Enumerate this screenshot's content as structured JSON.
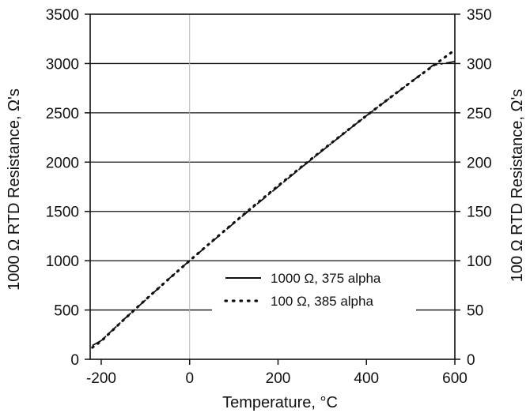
{
  "chart_data": {
    "type": "line",
    "title": "",
    "xlabel": "Temperature, °C",
    "ylabel_left": "1000  Ω  RTD Resistance,  Ω's",
    "ylabel_right": "100  Ω  RTD Resistance,  Ω's",
    "xlim": [
      -225,
      600
    ],
    "ylim_left": [
      0,
      3500
    ],
    "ylim_right": [
      0,
      350
    ],
    "x_ticks": [
      -200,
      0,
      200,
      400,
      600
    ],
    "y_ticks_left": [
      0,
      500,
      1000,
      1500,
      2000,
      2500,
      3000,
      3500
    ],
    "y_ticks_right": [
      0,
      50,
      100,
      150,
      200,
      250,
      300,
      350
    ],
    "grid": "horizontal",
    "legend_position": "lower-right",
    "series": [
      {
        "name": "1000  Ω,  375 alpha",
        "axis": "left",
        "style": "solid",
        "x": [
          -220,
          -200,
          -150,
          -100,
          -50,
          0,
          50,
          100,
          150,
          200,
          250,
          300,
          350,
          400,
          450,
          500,
          550,
          600
        ],
        "y": [
          140,
          190,
          400,
          600,
          805,
          1000,
          1190,
          1380,
          1565,
          1750,
          1935,
          2115,
          2295,
          2470,
          2640,
          2810,
          2980,
          3020
        ]
      },
      {
        "name": "100  Ω,  385 alpha",
        "axis": "right",
        "style": "dotted",
        "x": [
          -220,
          -200,
          -150,
          -100,
          -50,
          0,
          50,
          100,
          150,
          200,
          250,
          300,
          350,
          400,
          450,
          500,
          550,
          600
        ],
        "y": [
          12,
          18.5,
          39.7,
          60.3,
          80.3,
          100,
          119.4,
          138.5,
          157.3,
          175.9,
          194.1,
          212.1,
          229.7,
          247.1,
          264.2,
          281,
          297.5,
          313.7
        ]
      }
    ]
  }
}
